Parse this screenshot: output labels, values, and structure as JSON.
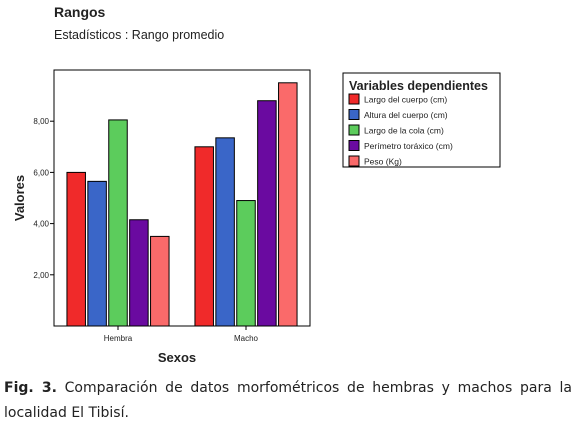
{
  "caption": {
    "label": "Fig. 3.",
    "text": "Comparación de datos morfométricos de hembras y machos para la localidad El Tibisí."
  },
  "chart_data": {
    "type": "bar",
    "title": "Rangos",
    "subtitle": "Estadísticos : Rango promedio",
    "xlabel": "Sexos",
    "ylabel": "Valores",
    "categories": [
      "Hembra",
      "Macho"
    ],
    "ylim": [
      0,
      10
    ],
    "yticks": [
      2,
      4,
      6,
      8
    ],
    "ytick_labels": [
      "2,00",
      "4,00",
      "6,00",
      "8,00"
    ],
    "grid": false,
    "legend": {
      "title": "Variables dependientes",
      "position": "right"
    },
    "series": [
      {
        "name": "Largo del cuerpo (cm)",
        "color": "#f02a2a",
        "values": [
          6.0,
          7.0
        ]
      },
      {
        "name": "Altura del cuerpo (cm)",
        "color": "#3a66c8",
        "values": [
          5.65,
          7.35
        ]
      },
      {
        "name": "Largo de la cola (cm)",
        "color": "#5ccc5c",
        "values": [
          8.05,
          4.9
        ]
      },
      {
        "name": "Perímetro toráxico (cm)",
        "color": "#6a0aa0",
        "values": [
          4.15,
          8.8
        ]
      },
      {
        "name": "Peso (Kg)",
        "color": "#fa6a6a",
        "values": [
          3.5,
          9.5
        ]
      }
    ]
  }
}
